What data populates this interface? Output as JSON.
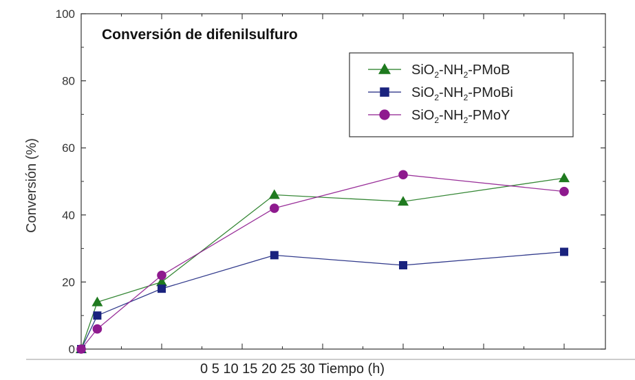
{
  "chart_data": {
    "type": "line",
    "title": "Conversión de difenilsulfuro",
    "ylabel": "Conversión (%)",
    "xlabel": "0 5 10 15 20 25 30 Tiempo (h)",
    "ylim": [
      0,
      100
    ],
    "xlim": [
      0,
      30
    ],
    "y_ticks": [
      "0",
      "20",
      "40",
      "60",
      "80",
      "100"
    ],
    "x": [
      0,
      1,
      5,
      12,
      20,
      30
    ],
    "series": [
      {
        "name_parts": [
          "SiO",
          "2",
          "-NH",
          "2",
          "-PMoB"
        ],
        "color": "#1f7a1f",
        "marker": "triangle",
        "values": [
          0,
          14,
          20,
          46,
          44,
          51
        ]
      },
      {
        "name_parts": [
          "SiO",
          "2",
          "-NH",
          "2",
          "-PMoBi"
        ],
        "color": "#1a237e",
        "marker": "square",
        "values": [
          0,
          10,
          18,
          28,
          25,
          29
        ]
      },
      {
        "name_parts": [
          "SiO",
          "2",
          "-NH",
          "2",
          "-PMoY"
        ],
        "color": "#8e1a8e",
        "marker": "circle",
        "values": [
          0,
          6,
          22,
          42,
          52,
          47
        ]
      }
    ],
    "legend_position": "top-right",
    "grid": false
  }
}
